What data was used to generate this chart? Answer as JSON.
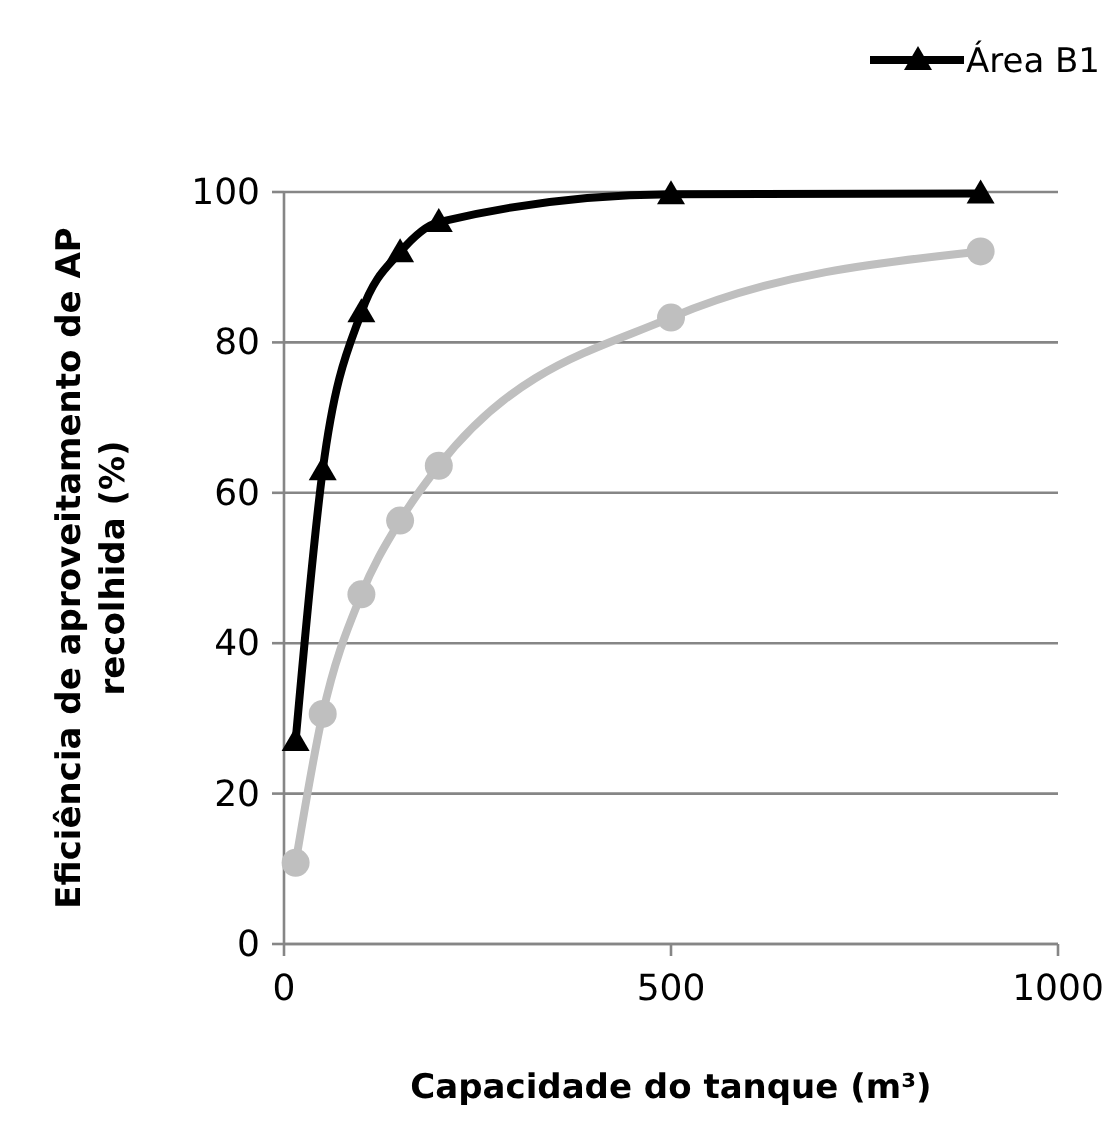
{
  "chart_data": {
    "type": "line",
    "xlabel": "Capacidade do tanque (m³)",
    "ylabel": "Eficiência de aproveitamento de AP recolhida (%)",
    "x": [
      15,
      50,
      100,
      150,
      200,
      500,
      900
    ],
    "series": [
      {
        "name": "Área B1",
        "color": "#000000",
        "marker": "triangle",
        "values": [
          27,
          63,
          84,
          92,
          96,
          99.7,
          99.8
        ]
      },
      {
        "color": "#bfbfbf",
        "marker": "circle",
        "values": [
          10.8,
          30.6,
          46.5,
          56.3,
          63.6,
          83.3,
          92.1
        ]
      }
    ],
    "xlim": [
      0,
      1000
    ],
    "xticks": [
      0,
      500,
      1000
    ],
    "ylim": [
      0,
      100
    ],
    "yticks": [
      0,
      20,
      40,
      60,
      80,
      100
    ],
    "grid": "y",
    "legend": "top right"
  }
}
